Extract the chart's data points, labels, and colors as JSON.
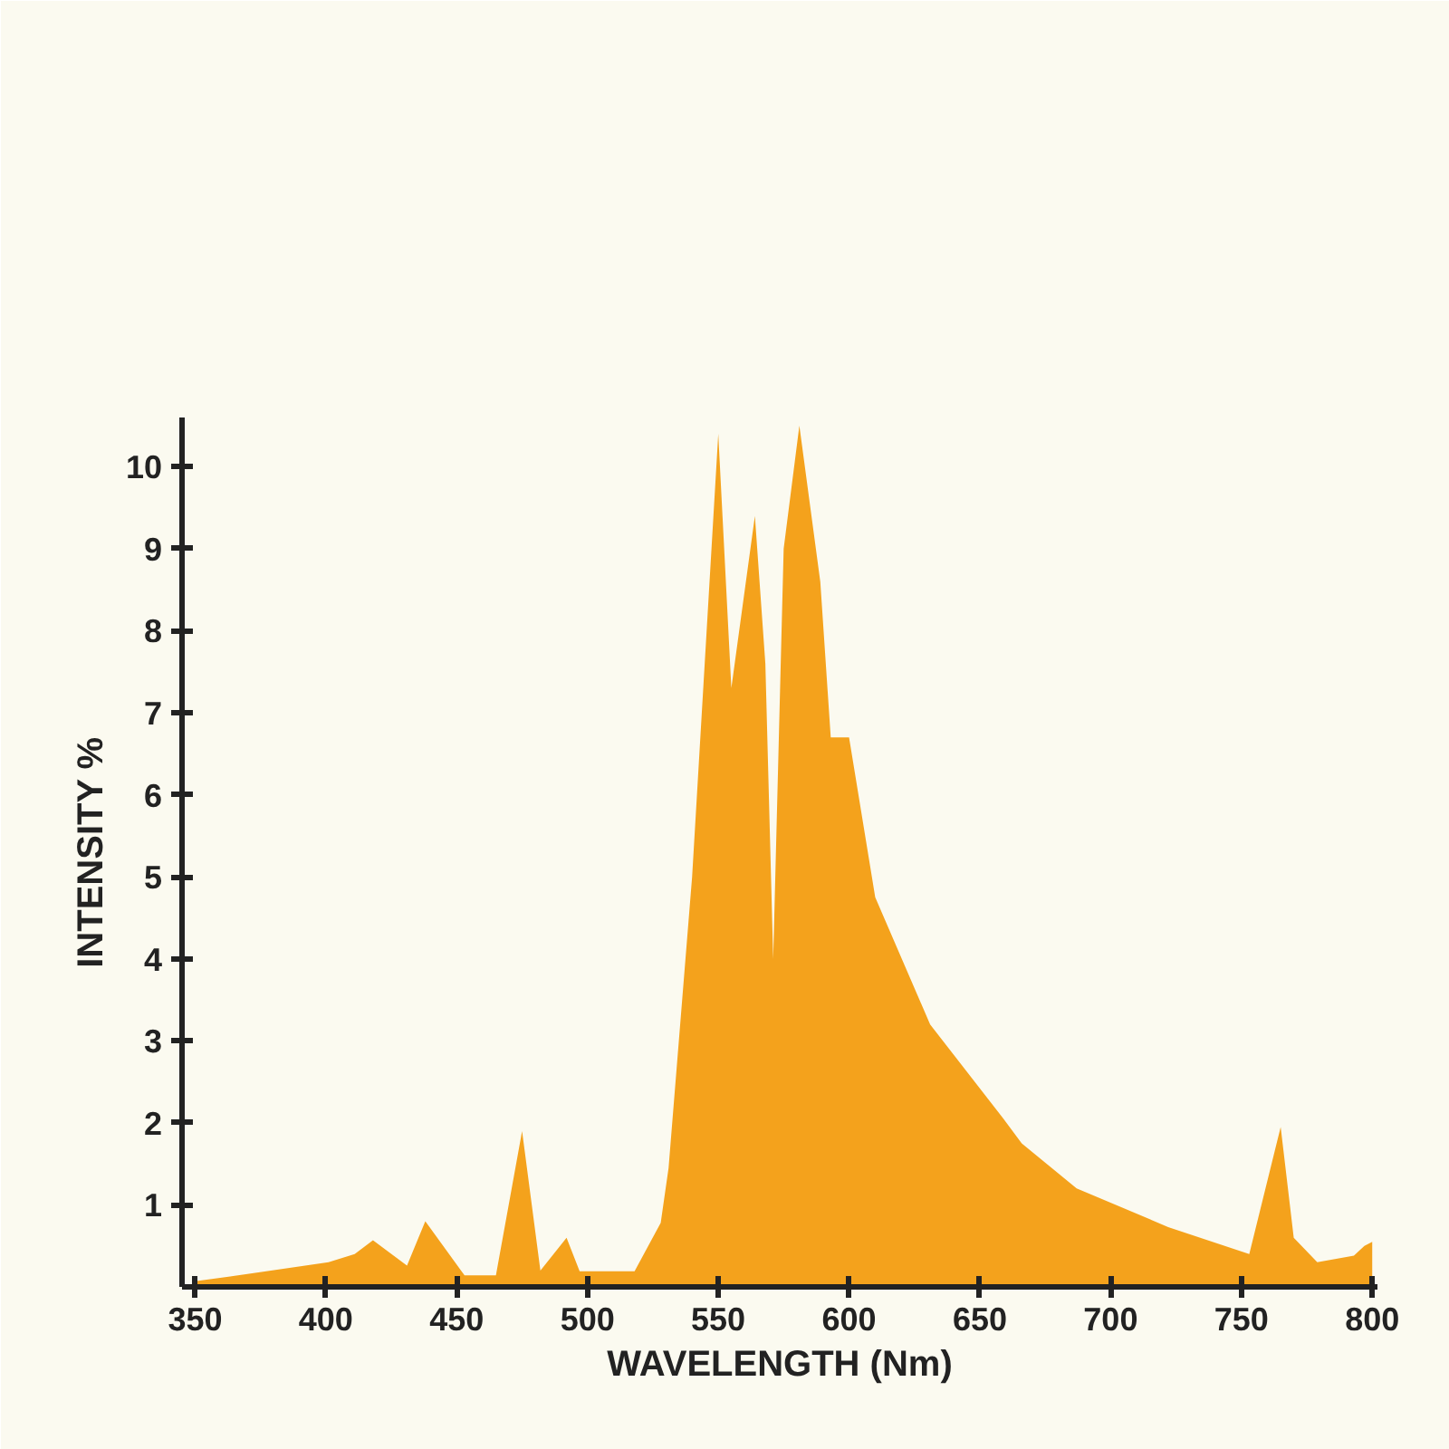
{
  "chart_data": {
    "type": "area",
    "xlabel": "WAVELENGTH (Nm)",
    "ylabel": "INTENSITY %",
    "x": [
      350,
      373,
      401,
      411,
      418,
      431,
      438,
      453,
      465,
      475,
      482,
      492,
      497,
      518,
      528,
      531,
      540,
      550,
      555,
      564,
      568,
      571,
      575,
      581,
      589,
      593,
      600,
      610,
      631,
      659,
      666,
      687,
      722,
      753,
      765,
      770,
      779,
      793,
      797,
      800
    ],
    "series": [
      {
        "color": "#f4a21c",
        "values": [
          0.07,
          0.17,
          0.3,
          0.4,
          0.57,
          0.26,
          0.8,
          0.14,
          0.14,
          1.9,
          0.2,
          0.6,
          0.19,
          0.19,
          0.78,
          1.45,
          5,
          10.4,
          7.3,
          9.4,
          7.6,
          4.0,
          9.0,
          10.5,
          8.6,
          6.7,
          6.7,
          4.75,
          3.2,
          2.05,
          1.75,
          1.2,
          0.73,
          0.4,
          1.95,
          0.6,
          0.3,
          0.38,
          0.5,
          0.55
        ]
      }
    ],
    "xlim": [
      345,
      802
    ],
    "ylim": [
      0,
      10.6
    ],
    "xticks": [
      350,
      400,
      450,
      500,
      550,
      600,
      650,
      700,
      750,
      800
    ],
    "yticks": [
      1,
      2,
      3,
      4,
      5,
      6,
      7,
      8,
      9,
      10
    ],
    "grid": false
  }
}
